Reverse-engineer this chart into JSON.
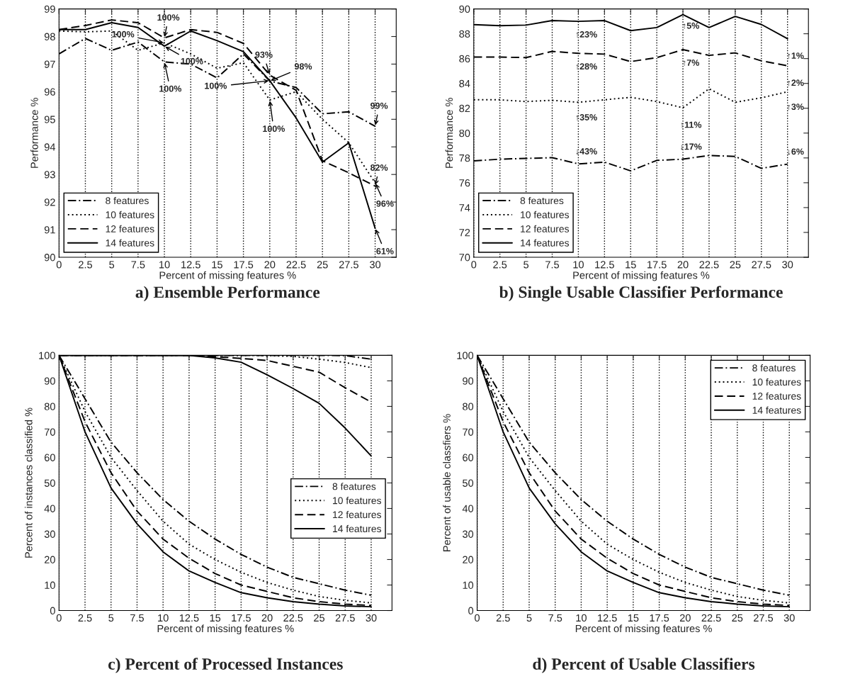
{
  "chart_data": [
    {
      "type": "line",
      "title": "a) Ensemble Performance",
      "xlabel": "Percent of missing features %",
      "ylabel": "Performance %",
      "x": [
        0,
        2.5,
        5,
        7.5,
        10,
        12.5,
        15,
        17.5,
        20,
        22.5,
        25,
        27.5,
        30
      ],
      "xlim": [
        0,
        32
      ],
      "xticks": [
        0,
        2.5,
        5,
        7.5,
        10,
        12.5,
        15,
        17.5,
        20,
        22.5,
        25,
        27.5,
        30
      ],
      "ylim": [
        90,
        99
      ],
      "yticks": [
        90,
        91,
        92,
        93,
        94,
        95,
        96,
        97,
        98,
        99
      ],
      "grid": "x",
      "legend": "bottom left",
      "series": [
        {
          "name": "8 features",
          "color": "#000000",
          "line_style": "dashdot",
          "values": [
            97.37,
            97.93,
            97.5,
            97.8,
            97.08,
            97.0,
            96.5,
            97.37,
            96.39,
            96.15,
            95.2,
            95.27,
            94.75
          ]
        },
        {
          "name": "10 features",
          "color": "#000000",
          "line_style": "dotted",
          "values": [
            98.2,
            98.17,
            98.2,
            97.5,
            97.77,
            97.37,
            96.85,
            97.05,
            95.7,
            96.0,
            95.0,
            94.15,
            92.7
          ]
        },
        {
          "name": "12 features",
          "color": "#000000",
          "line_style": "dashed",
          "values": [
            98.25,
            98.4,
            98.6,
            98.5,
            97.95,
            98.25,
            98.15,
            97.75,
            96.6,
            96.05,
            93.5,
            93.06,
            92.58
          ]
        },
        {
          "name": "14 features",
          "color": "#000000",
          "line_style": "solid",
          "values": [
            98.25,
            98.25,
            98.5,
            98.33,
            97.65,
            98.2,
            97.85,
            97.45,
            96.4,
            95.05,
            93.45,
            94.15,
            91.05
          ]
        }
      ],
      "annotations": [
        {
          "text": "100%",
          "x": 10,
          "y": 97.95
        },
        {
          "text": "100%",
          "x": 10,
          "y": 97.77
        },
        {
          "text": "100%",
          "x": 10,
          "y": 97.65
        },
        {
          "text": "100%",
          "x": 10,
          "y": 97.08
        },
        {
          "text": "93%",
          "x": 20,
          "y": 96.6
        },
        {
          "text": "98%",
          "x": 20,
          "y": 96.39
        },
        {
          "text": "100%",
          "x": 20,
          "y": 96.4
        },
        {
          "text": "100%",
          "x": 20,
          "y": 95.7
        },
        {
          "text": "99%",
          "x": 30,
          "y": 94.75
        },
        {
          "text": "82%",
          "x": 30,
          "y": 92.58
        },
        {
          "text": "96%",
          "x": 30,
          "y": 92.7
        },
        {
          "text": "61%",
          "x": 30,
          "y": 91.05
        }
      ]
    },
    {
      "type": "line",
      "title": "b) Single Usable Classifier Performance",
      "xlabel": "Percent of missing features %",
      "ylabel": "Performance %",
      "x": [
        0,
        2.5,
        5,
        7.5,
        10,
        12.5,
        15,
        17.5,
        20,
        22.5,
        25,
        27.5,
        30
      ],
      "xlim": [
        0,
        32
      ],
      "xticks": [
        0,
        2.5,
        5,
        7.5,
        10,
        12.5,
        15,
        17.5,
        20,
        22.5,
        25,
        27.5,
        30
      ],
      "ylim": [
        70,
        90
      ],
      "yticks": [
        70,
        72,
        74,
        76,
        78,
        80,
        82,
        84,
        86,
        88,
        90
      ],
      "grid": "x",
      "legend": "bottom left",
      "series": [
        {
          "name": "8 features",
          "color": "#000000",
          "line_style": "dashdot",
          "values": [
            77.76,
            77.9,
            77.96,
            78.02,
            77.52,
            77.66,
            76.96,
            77.8,
            77.9,
            78.2,
            78.12,
            77.16,
            77.5
          ]
        },
        {
          "name": "10 features",
          "color": "#000000",
          "line_style": "dotted",
          "values": [
            82.68,
            82.68,
            82.54,
            82.64,
            82.48,
            82.68,
            82.88,
            82.54,
            82.04,
            83.57,
            82.48,
            82.84,
            83.33
          ]
        },
        {
          "name": "12 features",
          "color": "#000000",
          "line_style": "dashed",
          "values": [
            86.12,
            86.12,
            86.08,
            86.58,
            86.42,
            86.36,
            85.76,
            86.08,
            86.72,
            86.26,
            86.46,
            85.82,
            85.42
          ]
        },
        {
          "name": "14 features",
          "color": "#000000",
          "line_style": "solid",
          "values": [
            88.73,
            88.65,
            88.7,
            89.06,
            89.0,
            89.06,
            88.25,
            88.5,
            89.54,
            88.5,
            89.4,
            88.75,
            87.6
          ]
        }
      ],
      "annotations": [
        {
          "text": "↑23%",
          "x": 10,
          "y": 89.0
        },
        {
          "text": "↑5%",
          "x": 20,
          "y": 89.54
        },
        {
          "text": "↑1%",
          "x": 30,
          "y": 87.6
        },
        {
          "text": "↑28%",
          "x": 10,
          "y": 86.42
        },
        {
          "text": "↑7%",
          "x": 20,
          "y": 86.72
        },
        {
          "text": "↑2%",
          "x": 30,
          "y": 85.42
        },
        {
          "text": "↑35%",
          "x": 10,
          "y": 82.48
        },
        {
          "text": "↑11%",
          "x": 20,
          "y": 82.04
        },
        {
          "text": "↑3%",
          "x": 30,
          "y": 83.33
        },
        {
          "text": "↓43%",
          "x": 10,
          "y": 77.52
        },
        {
          "text": "↓17%",
          "x": 20,
          "y": 77.9
        },
        {
          "text": "↓6%",
          "x": 30,
          "y": 77.5
        }
      ]
    },
    {
      "type": "line",
      "title": "c) Percent of Processed Instances",
      "xlabel": "Percent of missing features %",
      "ylabel": "Percent of instances classified %",
      "x": [
        0,
        2.5,
        5,
        7.5,
        10,
        12.5,
        15,
        17.5,
        20,
        22.5,
        25,
        27.5,
        30
      ],
      "xlim": [
        0,
        32
      ],
      "xticks": [
        0,
        2.5,
        5,
        7.5,
        10,
        12.5,
        15,
        17.5,
        20,
        22.5,
        25,
        27.5,
        30
      ],
      "ylim": [
        0,
        100
      ],
      "yticks": [
        0,
        10,
        20,
        30,
        40,
        50,
        60,
        70,
        80,
        90,
        100
      ],
      "grid": "x",
      "legend": "right",
      "series": [
        {
          "name": "8 features",
          "color": "#000000",
          "line_style": "dashdot",
          "values": [
            100,
            83,
            66,
            54,
            43.5,
            35,
            28,
            22,
            17,
            13,
            10.5,
            8,
            6
          ]
        },
        {
          "name": "10 features",
          "color": "#000000",
          "line_style": "dotted",
          "values": [
            100,
            78,
            60,
            47,
            35,
            26,
            20,
            15,
            11,
            8,
            5.5,
            4,
            3
          ]
        },
        {
          "name": "12 features",
          "color": "#000000",
          "line_style": "dashed",
          "values": [
            100,
            74,
            54,
            39,
            28,
            20.5,
            14.5,
            10,
            7.5,
            5,
            3.5,
            2.5,
            2
          ]
        },
        {
          "name": "14 features",
          "color": "#000000",
          "line_style": "solid",
          "values": [
            100,
            70,
            48,
            34,
            23,
            15.5,
            11,
            7,
            5,
            3.5,
            2.5,
            1.8,
            1.5
          ]
        },
        {
          "color": "#000000",
          "line_style": "dashdot",
          "values": [
            100,
            100,
            100,
            100,
            100,
            100,
            100,
            100,
            100,
            100,
            100,
            99.9,
            98.5
          ]
        },
        {
          "color": "#000000",
          "line_style": "dotted",
          "values": [
            100,
            100,
            100,
            100,
            100,
            100,
            100,
            100,
            99.9,
            99.6,
            98.5,
            97.2,
            95.2
          ]
        },
        {
          "color": "#000000",
          "line_style": "dashed",
          "values": [
            100,
            100,
            100,
            100,
            100,
            100,
            99.5,
            98.8,
            98,
            95.7,
            93.4,
            87.3,
            81.7
          ]
        },
        {
          "color": "#000000",
          "line_style": "solid",
          "values": [
            100,
            100,
            100,
            100,
            100,
            100,
            99,
            97.3,
            92.4,
            87,
            81.2,
            71.5,
            60.6
          ]
        }
      ]
    },
    {
      "type": "line",
      "title": "d) Percent of Usable Classifiers",
      "xlabel": "Percent of missing features %",
      "ylabel": "Percent of usable classfiers %",
      "x": [
        0,
        2.5,
        5,
        7.5,
        10,
        12.5,
        15,
        17.5,
        20,
        22.5,
        25,
        27.5,
        30
      ],
      "xlim": [
        0,
        32
      ],
      "xticks": [
        0,
        2.5,
        5,
        7.5,
        10,
        12.5,
        15,
        17.5,
        20,
        22.5,
        25,
        27.5,
        30
      ],
      "ylim": [
        0,
        100
      ],
      "yticks": [
        0,
        10,
        20,
        30,
        40,
        50,
        60,
        70,
        80,
        90,
        100
      ],
      "grid": "x",
      "legend": "top right",
      "series": [
        {
          "name": "8 features",
          "color": "#000000",
          "line_style": "dashdot",
          "values": [
            100,
            83,
            66,
            54,
            43.5,
            35,
            28,
            22,
            17,
            13,
            10.5,
            8,
            6
          ]
        },
        {
          "name": "10 features",
          "color": "#000000",
          "line_style": "dotted",
          "values": [
            100,
            78,
            60,
            47,
            35,
            26,
            20,
            15,
            11,
            8,
            5.5,
            4,
            3
          ]
        },
        {
          "name": "12 features",
          "color": "#000000",
          "line_style": "dashed",
          "values": [
            100,
            74,
            54,
            39,
            28,
            20.5,
            14.5,
            10,
            7.5,
            5,
            3.5,
            2.5,
            2
          ]
        },
        {
          "name": "14 features",
          "color": "#000000",
          "line_style": "solid",
          "values": [
            100,
            70,
            48,
            34,
            23,
            15.5,
            11,
            7,
            5,
            3.5,
            2.5,
            1.8,
            1.5
          ]
        }
      ]
    }
  ]
}
